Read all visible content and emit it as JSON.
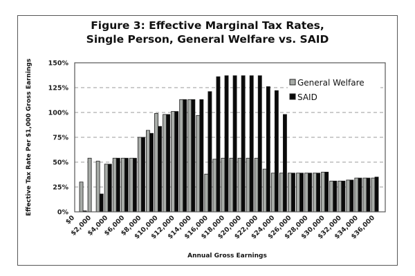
{
  "chart_data": {
    "type": "bar",
    "title": [
      "Figure 3: Effective Marginal Tax Rates,",
      "Single Person, General Welfare vs. SAID"
    ],
    "xlabel": "Annual Gross Earnings",
    "ylabel": "Effective Tax Rate Per $1,000 Gross Earnings",
    "ylim": [
      0,
      150
    ],
    "yticks": [
      0,
      25,
      50,
      75,
      100,
      125,
      150
    ],
    "ytick_labels": [
      "0%",
      "25%",
      "50%",
      "75%",
      "100%",
      "125%",
      "150%"
    ],
    "xtick_labels": [
      "$0",
      "$2,000",
      "$4,000",
      "$6,000",
      "$8,000",
      "$10,000",
      "$12,000",
      "$14,000",
      "$16,000",
      "$18,000",
      "$20,000",
      "$22,000",
      "$24,000",
      "$26,000",
      "$28,000",
      "$30,000",
      "$32,000",
      "$34,000",
      "$36,000"
    ],
    "categories": [
      "$1,000",
      "$2,000",
      "$3,000",
      "$4,000",
      "$5,000",
      "$6,000",
      "$7,000",
      "$8,000",
      "$9,000",
      "$10,000",
      "$11,000",
      "$12,000",
      "$13,000",
      "$14,000",
      "$15,000",
      "$16,000",
      "$17,000",
      "$18,000",
      "$19,000",
      "$20,000",
      "$21,000",
      "$22,000",
      "$23,000",
      "$24,000",
      "$25,000",
      "$26,000",
      "$27,000",
      "$28,000",
      "$29,000",
      "$30,000",
      "$31,000",
      "$32,000",
      "$33,000",
      "$34,000",
      "$35,000",
      "$36,000"
    ],
    "series": [
      {
        "name": "General Welfare",
        "color": "#a8aca8",
        "values": [
          30,
          54,
          51,
          48,
          54,
          54,
          54,
          75,
          82,
          99,
          98,
          101,
          113,
          113,
          97,
          38,
          53,
          54,
          54,
          54,
          54,
          54,
          43,
          39,
          39,
          39,
          39,
          39,
          39,
          40,
          31,
          31,
          32,
          34,
          34,
          34
        ]
      },
      {
        "name": "SAID",
        "color": "#0a0a0a",
        "values": [
          1,
          0,
          18,
          48,
          54,
          54,
          54,
          75,
          79,
          86,
          98,
          101,
          113,
          113,
          113,
          121,
          136,
          137,
          137,
          137,
          137,
          137,
          126,
          122,
          98,
          39,
          39,
          39,
          39,
          40,
          31,
          31,
          32,
          34,
          34,
          35
        ]
      }
    ],
    "grid": "horizontal-dashed",
    "legend_position": "top-right"
  }
}
